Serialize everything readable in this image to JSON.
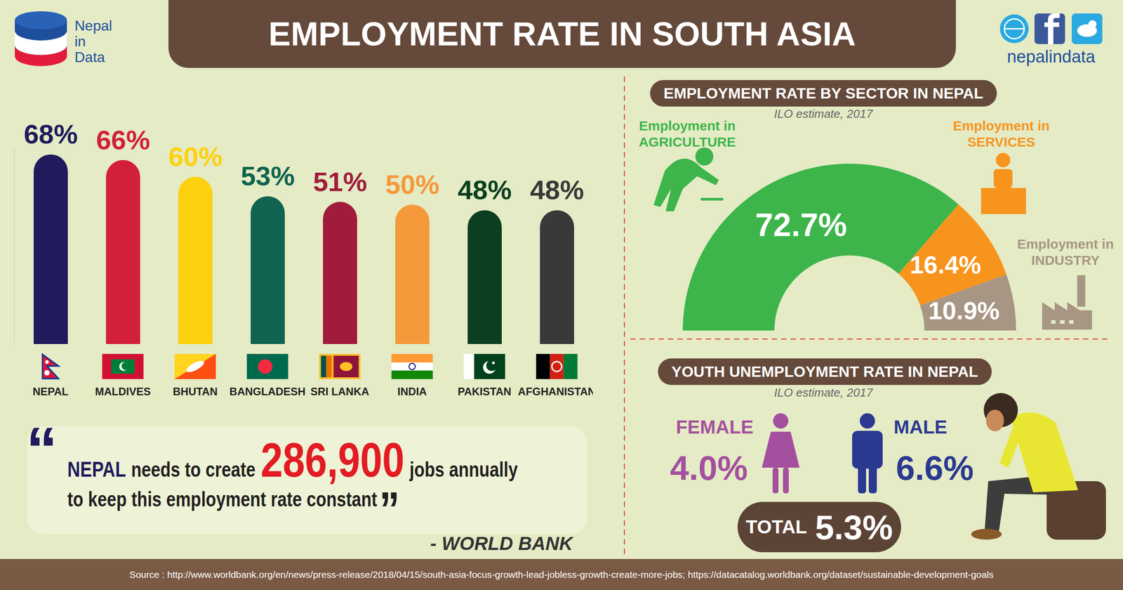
{
  "header": {
    "title": "EMPLOYMENT RATE IN SOUTH ASIA",
    "logo": [
      "Nepal",
      "in",
      "Data"
    ],
    "handle": "nepalindata"
  },
  "chart_data": [
    {
      "type": "bar",
      "categories": [
        "NEPAL",
        "MALDIVES",
        "BHUTAN",
        "BANGLADESH",
        "SRI LANKA",
        "INDIA",
        "PAKISTAN",
        "AFGHANISTAN"
      ],
      "values": [
        68,
        66,
        60,
        53,
        51,
        50,
        48,
        48
      ],
      "value_labels": [
        "68%",
        "66%",
        "60%",
        "53%",
        "51%",
        "50%",
        "48%",
        "48%"
      ],
      "colors": [
        "#1f1b5c",
        "#d2203b",
        "#fdd10f",
        "#0f6350",
        "#a11c3b",
        "#f5993a",
        "#0c3e20",
        "#3a3838"
      ],
      "ylim": [
        0,
        70
      ],
      "tick_labels": "x",
      "data_labels": true,
      "grid": false
    },
    {
      "type": "pie",
      "title": "EMPLOYMENT RATE BY SECTOR IN NEPAL",
      "subtitle": "ILO estimate, 2017",
      "categories": [
        "Employment in AGRICULTURE",
        "Employment in SERVICES",
        "Employment in INDUSTRY"
      ],
      "values": [
        72.7,
        16.4,
        10.9
      ],
      "value_labels": [
        "72.7%",
        "16.4%",
        "10.9%"
      ],
      "colors": [
        "#3db54a",
        "#f7941d",
        "#a89684"
      ],
      "data_labels": true
    }
  ],
  "quote": {
    "open_mark": "“",
    "subject": "NEPAL",
    "text_before": "needs to create",
    "number": "286,900",
    "text_after": "jobs annually",
    "line2": "to keep this employment rate constant",
    "close_mark": "”",
    "attribution": "- WORLD BANK"
  },
  "youth_unemployment": {
    "title": "YOUTH UNEMPLOYMENT RATE IN NEPAL",
    "subtitle": "ILO estimate, 2017",
    "groups": [
      {
        "label": "FEMALE",
        "value": "4.0%",
        "color": "#a4509f"
      },
      {
        "label": "MALE",
        "value": "6.6%",
        "color": "#2b3990"
      }
    ],
    "total": {
      "label": "TOTAL",
      "value": "5.3%"
    }
  },
  "source": "Source : http://www.worldbank.org/en/news/press-release/2018/04/15/south-asia-focus-growth-lead-jobless-growth-create-more-jobs; https://datacatalog.worldbank.org/dataset/sustainable-development-goals"
}
